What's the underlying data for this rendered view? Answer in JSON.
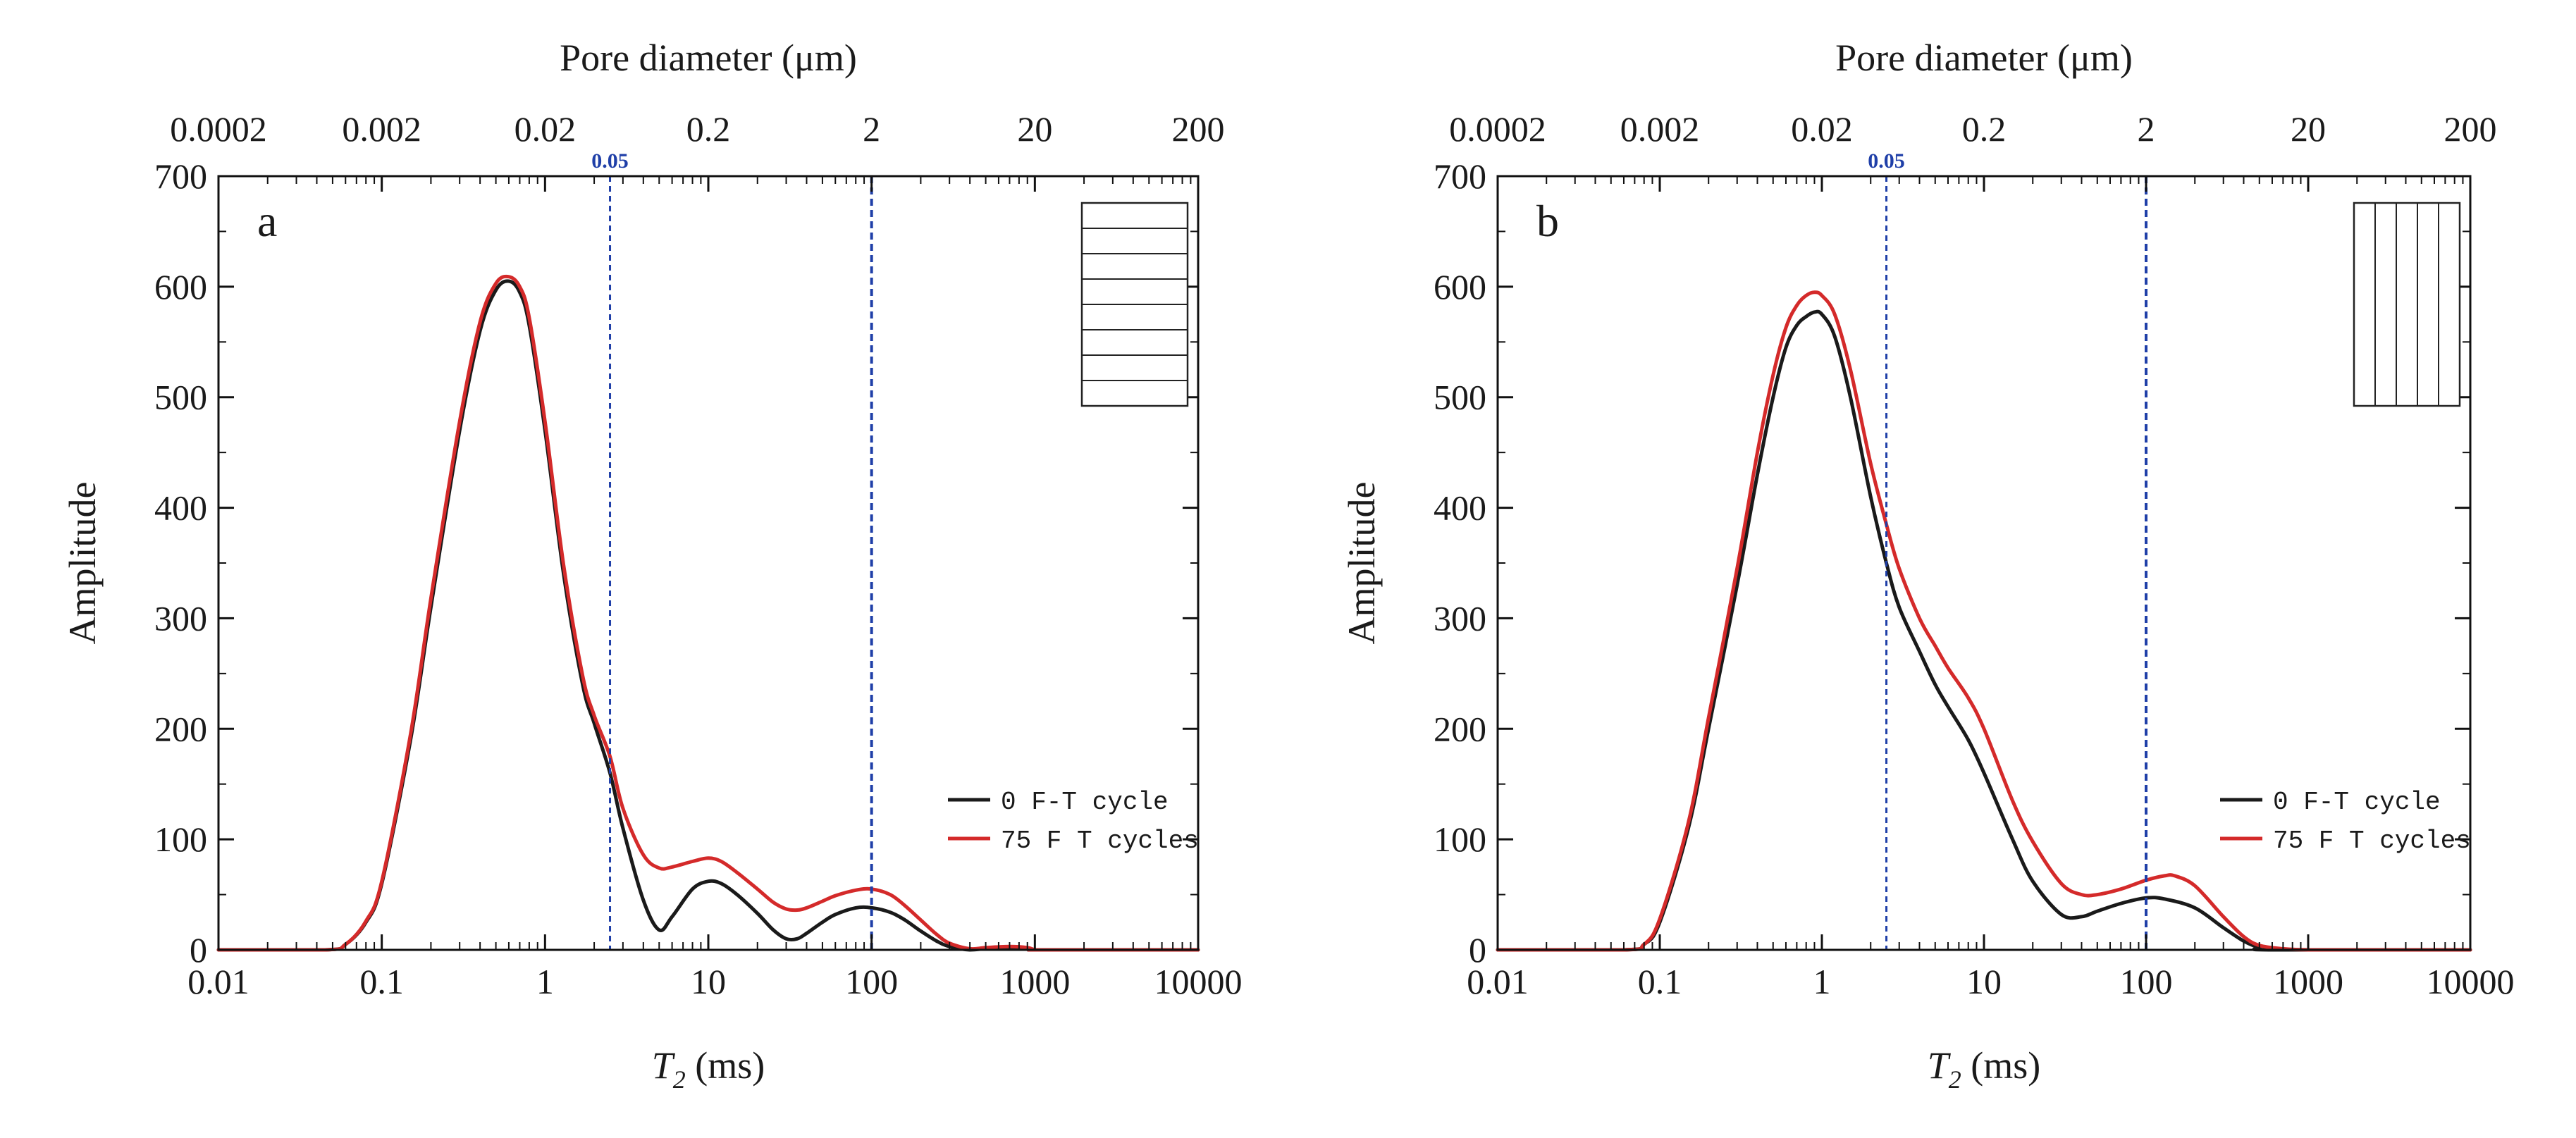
{
  "colors": {
    "series_0": "#1a1a1a",
    "series_75": "#d42a2a",
    "ref_line": "#1f3fa8",
    "axis": "#111111"
  },
  "chart_data": [
    {
      "type": "line",
      "panel_label": "a",
      "xlabel": "T",
      "xlabel_subscript": "2",
      "xlabel_unit": " (ms)",
      "ylabel": "Amplitude",
      "top_axis_label": "Pore diameter (μm)",
      "x_scale": "log",
      "xlim": [
        0.01,
        10000
      ],
      "ylim": [
        0,
        700
      ],
      "x_ticks": [
        0.01,
        0.1,
        1,
        10,
        100,
        1000,
        10000
      ],
      "x_tick_labels": [
        "0.01",
        "0.1",
        "1",
        "10",
        "100",
        "1000",
        "10000"
      ],
      "y_ticks": [
        0,
        100,
        200,
        300,
        400,
        500,
        600,
        700
      ],
      "y_tick_labels": [
        "0",
        "100",
        "200",
        "300",
        "400",
        "500",
        "600",
        "700"
      ],
      "top_ticks": [
        0.0002,
        0.002,
        0.02,
        0.2,
        2,
        20,
        200
      ],
      "top_tick_labels": [
        "0.0002",
        "0.002",
        "0.02",
        "0.2",
        "2",
        "20",
        "200"
      ],
      "top_to_bottom_factor": 50,
      "reference_lines": [
        {
          "x": 2.5,
          "label": "0.05"
        },
        {
          "x": 100,
          "label": ""
        }
      ],
      "inset": "horizontal-layers",
      "legend_position": "lower-right",
      "series": [
        {
          "name": "0   F-T cycle",
          "color_key": "series_0",
          "x": [
            0.01,
            0.045,
            0.06,
            0.08,
            0.1,
            0.15,
            0.2,
            0.3,
            0.4,
            0.5,
            0.6,
            0.7,
            0.8,
            1.0,
            1.3,
            1.7,
            2.0,
            2.5,
            3.0,
            4.0,
            5.0,
            6.0,
            8.0,
            10,
            12,
            15,
            20,
            25,
            30,
            35,
            40,
            50,
            60,
            80,
            100,
            130,
            160,
            200,
            250,
            300,
            400,
            500,
            700,
            900,
            1000,
            1100,
            10000
          ],
          "y": [
            0,
            0,
            5,
            25,
            60,
            190,
            310,
            470,
            560,
            597,
            605,
            595,
            565,
            470,
            340,
            240,
            205,
            160,
            110,
            45,
            18,
            30,
            55,
            62,
            60,
            50,
            33,
            18,
            10,
            10,
            15,
            25,
            32,
            38,
            38,
            34,
            27,
            17,
            8,
            3,
            0,
            1,
            2,
            1,
            0,
            0,
            0
          ]
        },
        {
          "name": "75  F  T  cycles",
          "color_key": "series_75",
          "x": [
            0.01,
            0.045,
            0.06,
            0.08,
            0.1,
            0.15,
            0.2,
            0.3,
            0.4,
            0.5,
            0.6,
            0.7,
            0.8,
            1.0,
            1.3,
            1.7,
            2.0,
            2.5,
            3.0,
            4.0,
            5.0,
            6.0,
            8.0,
            10,
            12,
            15,
            20,
            25,
            30,
            35,
            40,
            50,
            60,
            80,
            100,
            130,
            160,
            200,
            250,
            300,
            400,
            500,
            700,
            900,
            1000,
            1100,
            10000
          ],
          "y": [
            0,
            0,
            5,
            26,
            62,
            195,
            318,
            478,
            568,
            603,
            609,
            600,
            572,
            478,
            348,
            248,
            212,
            175,
            128,
            86,
            74,
            75,
            80,
            83,
            80,
            70,
            55,
            43,
            37,
            36,
            38,
            44,
            49,
            54,
            55,
            50,
            40,
            27,
            14,
            6,
            1,
            2,
            3,
            2,
            0,
            0,
            0
          ]
        }
      ]
    },
    {
      "type": "line",
      "panel_label": "b",
      "xlabel": "T",
      "xlabel_subscript": "2",
      "xlabel_unit": " (ms)",
      "ylabel": "Amplitude",
      "top_axis_label": "Pore diameter (μm)",
      "x_scale": "log",
      "xlim": [
        0.01,
        10000
      ],
      "ylim": [
        0,
        700
      ],
      "x_ticks": [
        0.01,
        0.1,
        1,
        10,
        100,
        1000,
        10000
      ],
      "x_tick_labels": [
        "0.01",
        "0.1",
        "1",
        "10",
        "100",
        "1000",
        "10000"
      ],
      "y_ticks": [
        0,
        100,
        200,
        300,
        400,
        500,
        600,
        700
      ],
      "y_tick_labels": [
        "0",
        "100",
        "200",
        "300",
        "400",
        "500",
        "600",
        "700"
      ],
      "top_ticks": [
        0.0002,
        0.002,
        0.02,
        0.2,
        2,
        20,
        200
      ],
      "top_tick_labels": [
        "0.0002",
        "0.002",
        "0.02",
        "0.2",
        "2",
        "20",
        "200"
      ],
      "top_to_bottom_factor": 50,
      "reference_lines": [
        {
          "x": 2.5,
          "label": "0.05"
        },
        {
          "x": 100,
          "label": ""
        }
      ],
      "inset": "vertical-layers",
      "legend_position": "lower-right",
      "series": [
        {
          "name": "0   F-T cycle",
          "color_key": "series_0",
          "x": [
            0.01,
            0.06,
            0.08,
            0.1,
            0.15,
            0.2,
            0.3,
            0.4,
            0.5,
            0.6,
            0.7,
            0.8,
            0.9,
            1.0,
            1.2,
            1.5,
            2.0,
            2.5,
            3.0,
            4.0,
            5.0,
            6.0,
            8.0,
            10,
            15,
            20,
            30,
            40,
            50,
            70,
            100,
            130,
            200,
            300,
            400,
            500,
            600,
            10000
          ],
          "y": [
            0,
            0,
            5,
            25,
            110,
            200,
            330,
            430,
            500,
            545,
            565,
            573,
            577,
            575,
            555,
            500,
            410,
            350,
            310,
            270,
            240,
            220,
            190,
            160,
            100,
            62,
            32,
            30,
            35,
            42,
            47,
            46,
            38,
            20,
            8,
            2,
            0,
            0
          ]
        },
        {
          "name": "75  F  T  cycles",
          "color_key": "series_75",
          "x": [
            0.01,
            0.06,
            0.08,
            0.1,
            0.15,
            0.2,
            0.3,
            0.4,
            0.5,
            0.6,
            0.7,
            0.8,
            0.9,
            1.0,
            1.2,
            1.5,
            2.0,
            2.5,
            3.0,
            4.0,
            5.0,
            6.0,
            8.0,
            10,
            15,
            20,
            30,
            40,
            50,
            70,
            100,
            130,
            150,
            200,
            300,
            400,
            500,
            700,
            1000,
            1500,
            10000
          ],
          "y": [
            0,
            0,
            5,
            28,
            115,
            210,
            345,
            450,
            520,
            563,
            583,
            592,
            595,
            592,
            575,
            525,
            440,
            385,
            345,
            300,
            275,
            255,
            228,
            200,
            135,
            98,
            60,
            50,
            50,
            55,
            63,
            67,
            67,
            58,
            30,
            12,
            4,
            1,
            0,
            0,
            0
          ]
        }
      ]
    }
  ]
}
